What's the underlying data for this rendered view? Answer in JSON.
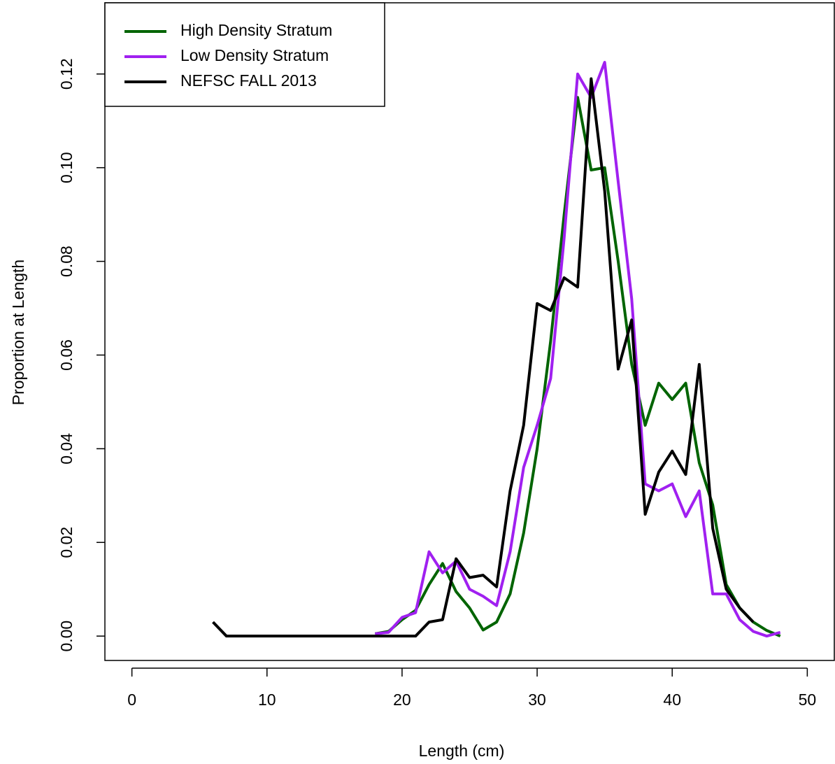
{
  "chart_data": {
    "type": "line",
    "x_label": "Length (cm)",
    "y_label": "Proportion at Length",
    "xlim": [
      -2,
      52
    ],
    "ylim": [
      -0.0052,
      0.1352
    ],
    "xticks": [
      0,
      10,
      20,
      30,
      40,
      50
    ],
    "yticks": [
      {
        "value": 0,
        "label": "0.00"
      },
      {
        "value": 0.02,
        "label": "0.02"
      },
      {
        "value": 0.04,
        "label": "0.04"
      },
      {
        "value": 0.06,
        "label": "0.06"
      },
      {
        "value": 0.08,
        "label": "0.08"
      },
      {
        "value": 0.1,
        "label": "0.10"
      },
      {
        "value": 0.12,
        "label": "0.12"
      }
    ],
    "legend": "topleft",
    "series": [
      {
        "name": "High Density Stratum",
        "color": "#006400",
        "x": [
          18,
          19,
          20,
          21,
          22,
          23,
          24,
          25,
          26,
          27,
          28,
          29,
          30,
          31,
          32,
          33,
          34,
          35,
          36,
          37,
          38,
          39,
          40,
          41,
          42,
          43,
          44,
          45,
          46,
          47,
          48
        ],
        "values": [
          0.0005,
          0.001,
          0.0035,
          0.0055,
          0.011,
          0.0155,
          0.0095,
          0.006,
          0.0013,
          0.003,
          0.009,
          0.022,
          0.04,
          0.063,
          0.09,
          0.115,
          0.0995,
          0.1,
          0.08,
          0.058,
          0.045,
          0.054,
          0.0505,
          0.054,
          0.037,
          0.028,
          0.011,
          0.006,
          0.003,
          0.0012,
          0
        ]
      },
      {
        "name": "Low Density Stratum",
        "color": "#a020f0",
        "x": [
          18,
          19,
          20,
          21,
          22,
          23,
          24,
          25,
          26,
          27,
          28,
          29,
          30,
          31,
          32,
          33,
          34,
          35,
          36,
          37,
          38,
          39,
          40,
          41,
          42,
          43,
          44,
          45,
          46,
          47,
          48
        ],
        "values": [
          0.0005,
          0.0008,
          0.004,
          0.005,
          0.018,
          0.0135,
          0.016,
          0.01,
          0.0085,
          0.0065,
          0.018,
          0.036,
          0.045,
          0.055,
          0.085,
          0.12,
          0.115,
          0.1225,
          0.097,
          0.072,
          0.0325,
          0.031,
          0.0325,
          0.0255,
          0.031,
          0.009,
          0.009,
          0.0035,
          0.001,
          0,
          0.0008
        ]
      },
      {
        "name": "NEFSC FALL 2013",
        "color": "#000000",
        "x": [
          6,
          7,
          8,
          9,
          10,
          11,
          12,
          13,
          14,
          15,
          16,
          17,
          18,
          19,
          20,
          21,
          22,
          23,
          24,
          25,
          26,
          27,
          28,
          29,
          30,
          31,
          32,
          33,
          34,
          35,
          36,
          37,
          38,
          39,
          40,
          41,
          42,
          43,
          44,
          45,
          46
        ],
        "values": [
          0.003,
          0,
          0,
          0,
          0,
          0,
          0,
          0,
          0,
          0,
          0,
          0,
          0,
          0,
          0,
          0,
          0.003,
          0.0035,
          0.0165,
          0.0125,
          0.013,
          0.0105,
          0.031,
          0.045,
          0.071,
          0.0695,
          0.0765,
          0.0745,
          0.119,
          0.095,
          0.057,
          0.0675,
          0.026,
          0.035,
          0.0395,
          0.0345,
          0.058,
          0.023,
          0.01,
          0.006,
          0.003
        ]
      }
    ]
  }
}
